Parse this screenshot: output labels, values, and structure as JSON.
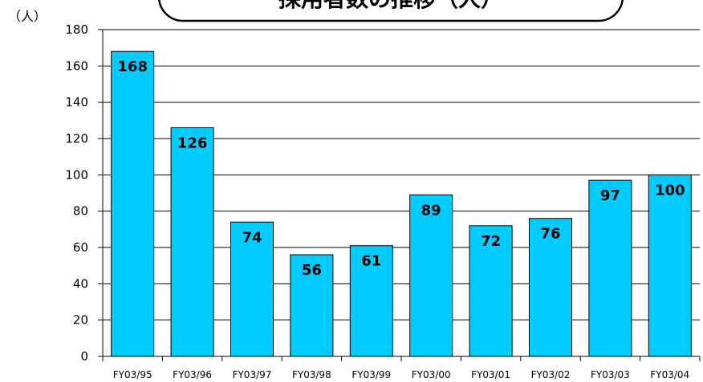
{
  "chart_data": {
    "type": "bar",
    "title": "採用者数の推移（人）",
    "unit_label": "（人）",
    "categories": [
      "FY03/95",
      "FY03/96",
      "FY03/97",
      "FY03/98",
      "FY03/99",
      "FY03/00",
      "FY03/01",
      "FY03/02",
      "FY03/03",
      "FY03/04"
    ],
    "values": [
      168,
      126,
      74,
      56,
      61,
      89,
      72,
      76,
      97,
      100
    ],
    "ylim": [
      0,
      180
    ],
    "yticks": [
      0,
      20,
      40,
      60,
      80,
      100,
      120,
      140,
      160,
      180
    ],
    "grid": true,
    "bar_color": "#00CCFF",
    "legend": "none"
  }
}
